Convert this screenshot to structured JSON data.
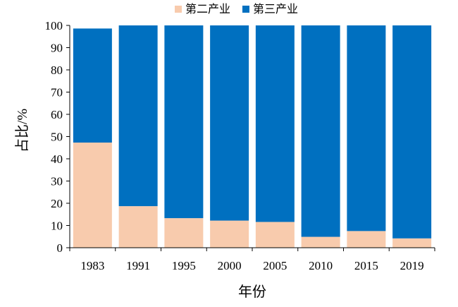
{
  "chart_data": {
    "type": "bar",
    "stacked": true,
    "categories": [
      "1983",
      "1991",
      "1995",
      "2000",
      "2005",
      "2010",
      "2015",
      "2019"
    ],
    "series": [
      {
        "name": "第二产业",
        "color": "#f8cbad",
        "values": [
          47.3,
          18.7,
          13.3,
          12.2,
          11.6,
          4.9,
          7.5,
          4.2
        ]
      },
      {
        "name": "第三产业",
        "color": "#0070c0",
        "values": [
          51.3,
          81.3,
          86.7,
          87.8,
          88.4,
          95.1,
          92.5,
          95.8
        ]
      }
    ],
    "xlabel": "年份",
    "ylabel": "占比/%",
    "ylim": [
      0,
      100
    ],
    "yticks": [
      0,
      10,
      20,
      30,
      40,
      50,
      60,
      70,
      80,
      90,
      100
    ],
    "grid": false,
    "legend": "top"
  }
}
